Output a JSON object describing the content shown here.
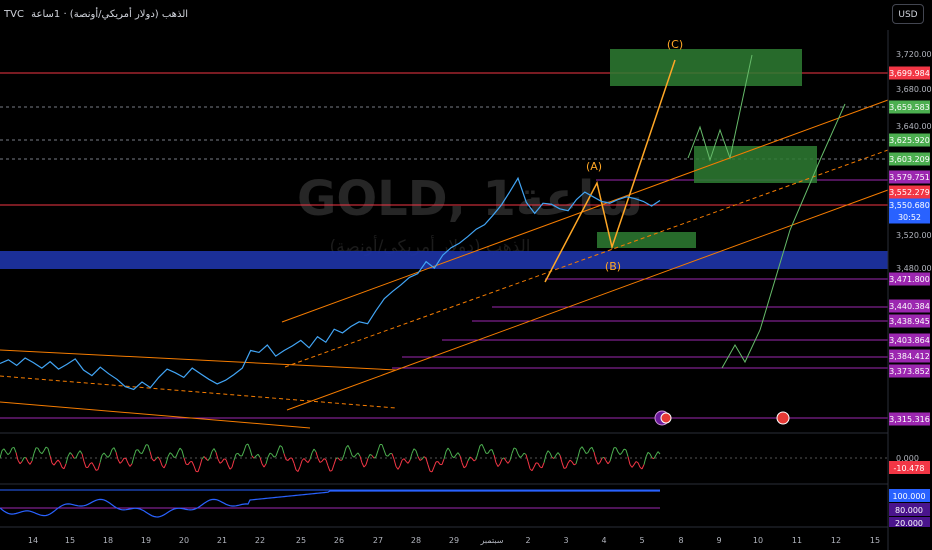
{
  "header": {
    "source": "TVC",
    "title": "الذهب (دولار أمريكي/أونصة) · 1ساعة",
    "currency": "USD"
  },
  "watermark": {
    "symbol": "GOLD, 1ساعة",
    "description": "الذهب (دولار أمريكي/أونصة)"
  },
  "chart_data": {
    "type": "line",
    "xlabel": "",
    "ylabel": "",
    "x_ticks": [
      "14",
      "15",
      "18",
      "19",
      "20",
      "21",
      "22",
      "25",
      "26",
      "27",
      "28",
      "29",
      "سبتمبر",
      "2",
      "3",
      "4",
      "5",
      "8",
      "9",
      "10",
      "11",
      "12",
      "15"
    ],
    "y_ticks": [
      "3,720.000",
      "3,680.000",
      "3,640.000",
      "3,520.000",
      "3,480.000"
    ],
    "ylim": [
      3300,
      3735
    ],
    "price_series": {
      "color": "#42a5f5",
      "values": [
        3375,
        3379,
        3373,
        3381,
        3376,
        3370,
        3377,
        3369,
        3374,
        3380,
        3368,
        3362,
        3371,
        3364,
        3358,
        3350,
        3347,
        3355,
        3349,
        3360,
        3369,
        3365,
        3360,
        3370,
        3364,
        3358,
        3353,
        3357,
        3363,
        3370,
        3389,
        3387,
        3395,
        3383,
        3389,
        3394,
        3400,
        3392,
        3404,
        3398,
        3412,
        3408,
        3415,
        3420,
        3418,
        3432,
        3445,
        3453,
        3460,
        3468,
        3472,
        3485,
        3478,
        3492,
        3500,
        3505,
        3512,
        3520,
        3525,
        3535,
        3546,
        3560,
        3575,
        3549,
        3537,
        3548,
        3547,
        3542,
        3540,
        3552,
        3560,
        3555,
        3550,
        3548,
        3552,
        3555,
        3553,
        3550,
        3545,
        3551
      ]
    },
    "price_labels": [
      {
        "text": "3,699.984",
        "color": "#f23645"
      },
      {
        "text": "3,659.583",
        "color": "#4caf50"
      },
      {
        "text": "3,625.920",
        "color": "#4caf50"
      },
      {
        "text": "3,603.209",
        "color": "#4caf50"
      },
      {
        "text": "3,579.751",
        "color": "#9c27b0"
      },
      {
        "text": "3,552.279",
        "color": "#f23645"
      },
      {
        "text": "3,550.680",
        "color": "#2962ff"
      },
      {
        "text": "30:52",
        "color": "#2962ff"
      },
      {
        "text": "3,471.800",
        "color": "#9c27b0"
      },
      {
        "text": "3,440.384",
        "color": "#9c27b0"
      },
      {
        "text": "3,438.945",
        "color": "#9c27b0"
      },
      {
        "text": "3,403.864",
        "color": "#9c27b0"
      },
      {
        "text": "3,384.412",
        "color": "#9c27b0"
      },
      {
        "text": "3,373.852",
        "color": "#9c27b0"
      },
      {
        "text": "3,315.316",
        "color": "#9c27b0"
      }
    ],
    "wave_labels": [
      "(A)",
      "(B)",
      "(C)"
    ],
    "oscillator": {
      "zero_label": "0.000",
      "value_label": "-10.478",
      "value_color": "#f23645"
    },
    "rsi_panel": {
      "labels": [
        "100.000",
        "80.000",
        "20.000"
      ]
    }
  }
}
